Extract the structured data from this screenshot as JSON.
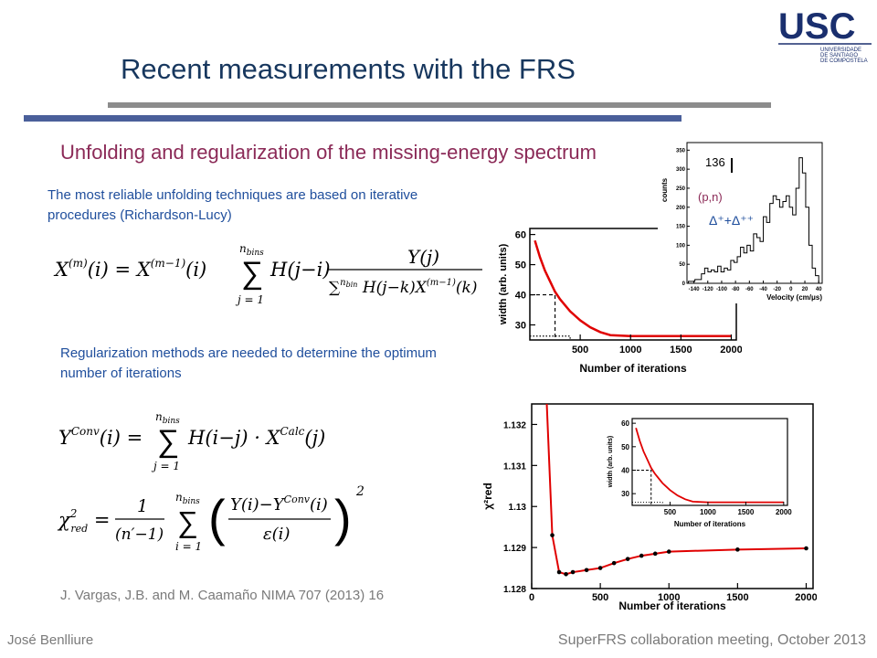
{
  "header": {
    "title": "Recent measurements with the FRS",
    "logo_text": "USC",
    "logo_sub": [
      "UNIVERSIDADE",
      "DE SANTIAGO",
      "DE COMPOSTELA"
    ]
  },
  "subtitle": "Unfolding and regularization of the  missing-energy spectrum",
  "paragraph1": "The most reliable unfolding techniques are based on iterative procedures (Richardson-Lucy)",
  "paragraph2": "Regularization methods are needed to determine the optimum number of iterations",
  "reference": "J. Vargas, J.B. and M. Caamaño NIMA 707 (2013)  16",
  "footer": {
    "author": "José Benlliure",
    "meeting": "SuperFRS collaboration meeting, October 2013"
  },
  "colors": {
    "title": "#17375e",
    "subtitle": "#8b2a57",
    "text": "#1f4e9c",
    "curve": "#e00000"
  },
  "chart_data": [
    {
      "type": "line",
      "title": "",
      "xlabel": "Number of iterations",
      "ylabel": "width (arb. units)",
      "xlim": [
        0,
        2050
      ],
      "ylim": [
        25,
        62
      ],
      "x_ticks": [
        500,
        1000,
        1500,
        2000
      ],
      "y_ticks": [
        30,
        40,
        50,
        60
      ],
      "series": [
        {
          "x": [
            50,
            100,
            150,
            200,
            250,
            300,
            400,
            500,
            600,
            700,
            800,
            1000,
            1200,
            1500,
            2000
          ],
          "y": [
            58,
            52.5,
            48,
            44.5,
            41,
            38.5,
            34.5,
            31.5,
            29.2,
            27.6,
            26.6,
            26.3,
            26.3,
            26.3,
            26.3
          ]
        }
      ],
      "markers": {
        "dashed_x": 250,
        "dashed_y": 40,
        "dotted_x": 400,
        "dotted_y": 26.3
      }
    },
    {
      "type": "line",
      "title": "",
      "xlabel": "Velocity (cm/μs)",
      "ylabel": "counts",
      "x_ticks": [
        -140,
        -120,
        -100,
        -80,
        -60,
        -40,
        -20,
        0,
        20,
        40
      ],
      "y_ticks": [
        0,
        50,
        100,
        150,
        200,
        250,
        300,
        350
      ],
      "annotations": [
        "136",
        "(p,n)",
        "Δ⁺+Δ⁺⁺"
      ]
    },
    {
      "type": "scatter",
      "title": "",
      "xlabel": "Number of iterations",
      "ylabel": "χ²red",
      "xlim": [
        0,
        2050
      ],
      "ylim": [
        1.128,
        1.1325
      ],
      "x_ticks": [
        0,
        500,
        1000,
        1500,
        2000
      ],
      "y_ticks": [
        1.128,
        1.129,
        1.13,
        1.131,
        1.132
      ],
      "series": [
        {
          "x": [
            150,
            200,
            250,
            300,
            400,
            500,
            600,
            700,
            800,
            900,
            1000,
            1500,
            2000
          ],
          "y": [
            1.1293,
            1.1284,
            1.12835,
            1.1284,
            1.12845,
            1.1285,
            1.12862,
            1.12872,
            1.1288,
            1.12885,
            1.1289,
            1.12895,
            1.12898
          ]
        }
      ]
    }
  ]
}
